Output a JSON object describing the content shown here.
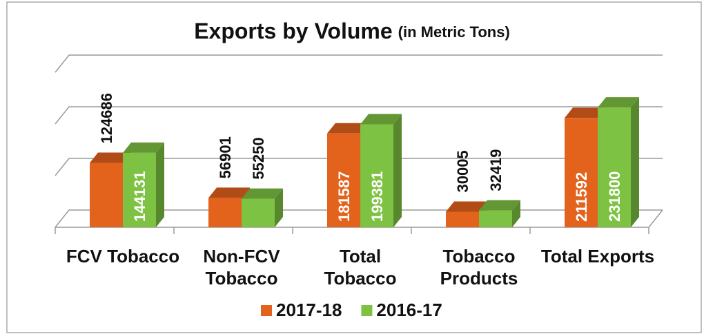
{
  "chart_data": {
    "type": "bar3d",
    "title": "Exports by Volume",
    "subtitle": "(in Metric Tons)",
    "categories": [
      "FCV Tobacco",
      "Non-FCV Tobacco",
      "Total Tobacco",
      "Tobacco Products",
      "Total Exports"
    ],
    "series": [
      {
        "name": "2017-18",
        "color": "#e3621c",
        "values": [
          124686,
          56901,
          181587,
          30005,
          211592
        ]
      },
      {
        "name": "2016-17",
        "color": "#7dc242",
        "values": [
          144131,
          55250,
          199381,
          32419,
          231800
        ]
      }
    ],
    "ylim": [
      0,
      300000
    ],
    "yticks": [
      0,
      100000,
      200000,
      300000
    ],
    "grid": true,
    "legend": "bottom"
  }
}
